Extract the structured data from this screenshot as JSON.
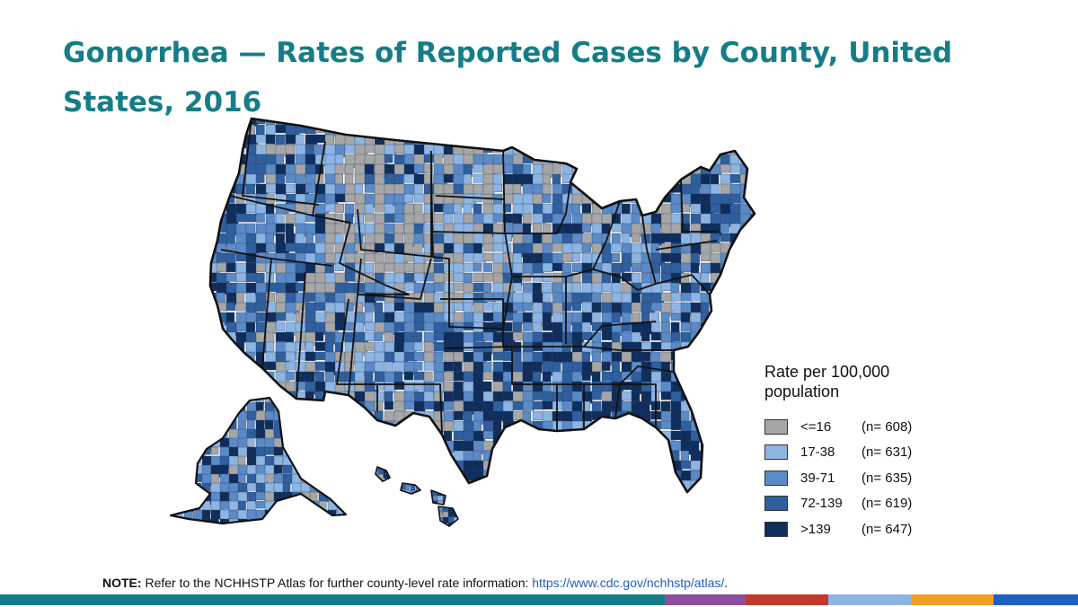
{
  "title": "Gonorrhea — Rates of Reported Cases by County, United States, 2016",
  "legend": {
    "title": "Rate per 100,000 population",
    "items": [
      {
        "label": "<=16",
        "count": "(n= 608)",
        "color": "#a6a6a6"
      },
      {
        "label": "17-38",
        "count": "(n= 631)",
        "color": "#8db5e3"
      },
      {
        "label": "39-71",
        "count": "(n= 635)",
        "color": "#5b8ac6"
      },
      {
        "label": "72-139",
        "count": "(n= 619)",
        "color": "#2f5f9e"
      },
      {
        "label": ">139",
        "count": "(n= 647)",
        "color": "#0f2e5c"
      }
    ]
  },
  "note": {
    "label": "NOTE:",
    "text": " Refer to the NCHHSTP Atlas for further county-level rate information: ",
    "link": "https://www.cdc.gov/nchhstp/atlas/",
    "end": "."
  },
  "footer_colors": [
    "#157d87",
    "#8e4f9e",
    "#c0392b",
    "#8db5e3",
    "#f0a020",
    "#1f5fbf"
  ]
}
